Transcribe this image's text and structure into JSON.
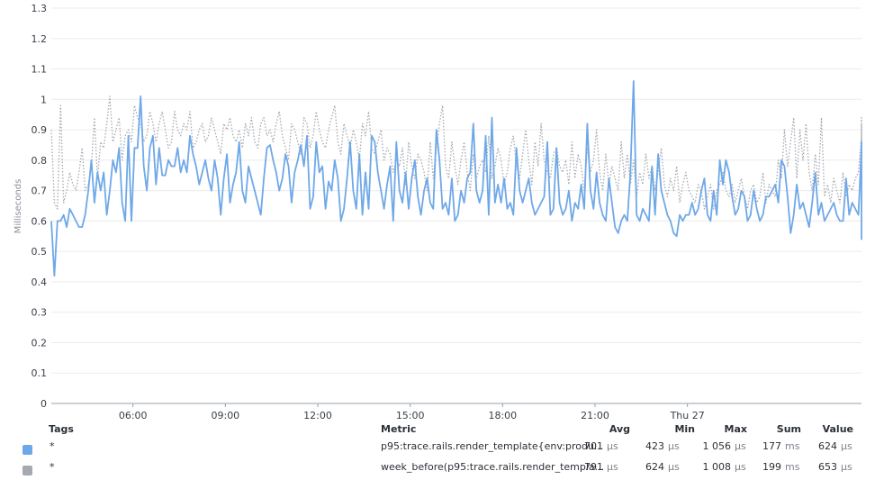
{
  "chart_data": {
    "type": "line",
    "ylabel": "Milliseconds",
    "ylim": [
      0,
      1.3
    ],
    "yticks": [
      "0",
      "0.1",
      "0.2",
      "0.3",
      "0.4",
      "0.5",
      "0.6",
      "0.7",
      "0.8",
      "0.9",
      "1",
      "1.1",
      "1.2",
      "1.3"
    ],
    "xlim": [
      3.35,
      29.65
    ],
    "xticks": [
      {
        "t": 6,
        "label": "06:00"
      },
      {
        "t": 9,
        "label": "09:00"
      },
      {
        "t": 12,
        "label": "12:00"
      },
      {
        "t": 15,
        "label": "15:00"
      },
      {
        "t": 18,
        "label": "18:00"
      },
      {
        "t": 21,
        "label": "21:00"
      },
      {
        "t": 24,
        "label": "Thu 27"
      }
    ],
    "series": [
      {
        "name": "p95:trace.rails.render_template{env:produ...",
        "color": "#6fa8e8",
        "style": "solid",
        "x_start": 3.35,
        "x_step": 0.1,
        "values": [
          0.6,
          0.42,
          0.6,
          0.6,
          0.62,
          0.58,
          0.64,
          0.62,
          0.6,
          0.58,
          0.58,
          0.62,
          0.7,
          0.8,
          0.66,
          0.76,
          0.7,
          0.76,
          0.62,
          0.7,
          0.8,
          0.76,
          0.84,
          0.66,
          0.6,
          0.88,
          0.6,
          0.84,
          0.84,
          1.01,
          0.78,
          0.7,
          0.84,
          0.88,
          0.72,
          0.84,
          0.75,
          0.75,
          0.8,
          0.78,
          0.78,
          0.84,
          0.76,
          0.8,
          0.76,
          0.88,
          0.82,
          0.78,
          0.72,
          0.76,
          0.8,
          0.74,
          0.7,
          0.8,
          0.74,
          0.62,
          0.74,
          0.82,
          0.66,
          0.72,
          0.76,
          0.86,
          0.7,
          0.66,
          0.78,
          0.74,
          0.7,
          0.66,
          0.62,
          0.74,
          0.84,
          0.85,
          0.8,
          0.76,
          0.7,
          0.74,
          0.82,
          0.78,
          0.66,
          0.76,
          0.8,
          0.85,
          0.78,
          0.88,
          0.64,
          0.68,
          0.86,
          0.76,
          0.78,
          0.64,
          0.73,
          0.7,
          0.8,
          0.74,
          0.6,
          0.64,
          0.74,
          0.86,
          0.7,
          0.64,
          0.82,
          0.62,
          0.76,
          0.64,
          0.88,
          0.86,
          0.76,
          0.7,
          0.64,
          0.72,
          0.78,
          0.6,
          0.86,
          0.7,
          0.66,
          0.76,
          0.64,
          0.74,
          0.8,
          0.68,
          0.62,
          0.7,
          0.74,
          0.66,
          0.64,
          0.9,
          0.8,
          0.64,
          0.66,
          0.62,
          0.74,
          0.6,
          0.62,
          0.7,
          0.66,
          0.74,
          0.76,
          0.92,
          0.7,
          0.66,
          0.7,
          0.88,
          0.62,
          0.94,
          0.66,
          0.72,
          0.66,
          0.74,
          0.64,
          0.66,
          0.62,
          0.84,
          0.7,
          0.66,
          0.7,
          0.74,
          0.66,
          0.62,
          0.64,
          0.66,
          0.68,
          0.86,
          0.62,
          0.64,
          0.84,
          0.66,
          0.62,
          0.64,
          0.7,
          0.6,
          0.66,
          0.64,
          0.72,
          0.64,
          0.92,
          0.7,
          0.64,
          0.76,
          0.66,
          0.62,
          0.6,
          0.74,
          0.66,
          0.58,
          0.56,
          0.6,
          0.62,
          0.6,
          0.76,
          1.06,
          0.62,
          0.6,
          0.64,
          0.62,
          0.6,
          0.78,
          0.62,
          0.82,
          0.7,
          0.66,
          0.62,
          0.6,
          0.56,
          0.55,
          0.62,
          0.6,
          0.62,
          0.62,
          0.66,
          0.62,
          0.64,
          0.7,
          0.74,
          0.62,
          0.6,
          0.7,
          0.62,
          0.8,
          0.72,
          0.8,
          0.76,
          0.68,
          0.62,
          0.64,
          0.7,
          0.68,
          0.6,
          0.62,
          0.7,
          0.64,
          0.6,
          0.62,
          0.68,
          0.68,
          0.7,
          0.72,
          0.66,
          0.8,
          0.78,
          0.68,
          0.56,
          0.62,
          0.72,
          0.64,
          0.66,
          0.62,
          0.58,
          0.66,
          0.76,
          0.62,
          0.66,
          0.6,
          0.62,
          0.64,
          0.66,
          0.62,
          0.6,
          0.6,
          0.74,
          0.62,
          0.66,
          0.64,
          0.62,
          0.84,
          0.8,
          0.68,
          0.66,
          0.76,
          0.66,
          0.62,
          0.74,
          0.68,
          0.64,
          0.78,
          0.6,
          0.7,
          0.64,
          0.68,
          0.76,
          0.62,
          0.64,
          0.78,
          0.66,
          0.62,
          0.6,
          0.64,
          0.72,
          0.66,
          0.62,
          0.64,
          0.58,
          0.76,
          0.58,
          0.72,
          0.86,
          0.62,
          0.74,
          0.64,
          0.58,
          0.6,
          0.62,
          0.62,
          0.58,
          0.56,
          0.58,
          0.64,
          0.62,
          0.6,
          0.6,
          0.62,
          0.7,
          0.6,
          0.62,
          0.66,
          0.62,
          0.58,
          0.6,
          0.58,
          0.56,
          0.58,
          0.6,
          0.72,
          0.58,
          0.7,
          0.64,
          0.56,
          0.58,
          0.62,
          0.66,
          0.6,
          0.56,
          0.54,
          0.56,
          0.62,
          0.66,
          0.6,
          0.62,
          0.62,
          0.62,
          0.6,
          0.58,
          0.64,
          0.66,
          0.62,
          0.7,
          0.62,
          0.58,
          0.56,
          0.58,
          0.62,
          0.6,
          0.56,
          0.7,
          0.56,
          0.68,
          0.66,
          0.62,
          0.6,
          0.62,
          0.6,
          0.74,
          0.6,
          0.7,
          0.58,
          0.66,
          0.82,
          0.82,
          0.84,
          0.72,
          0.8,
          0.76,
          0.86,
          0.78,
          0.74,
          0.8,
          0.72,
          0.68,
          0.6,
          0.58,
          0.62,
          0.58,
          0.6,
          0.62,
          0.6,
          0.7,
          0.64,
          0.62,
          0.76,
          0.62,
          0.6,
          0.58,
          0.62,
          0.56,
          0.57,
          0.62,
          0.66,
          0.6,
          0.64,
          0.6,
          0.64,
          0.7,
          0.64,
          0.62,
          0.66,
          0.62,
          0.6,
          0.56
        ]
      },
      {
        "name": "week_before(p95:trace.rails.render_templa...",
        "color": "#a5a9b0",
        "style": "dotted",
        "x_start": 3.35,
        "x_step": 0.1,
        "values": [
          0.9,
          0.66,
          0.64,
          0.98,
          0.66,
          0.7,
          0.76,
          0.72,
          0.7,
          0.76,
          0.84,
          0.7,
          0.72,
          0.78,
          0.94,
          0.74,
          0.86,
          0.84,
          0.92,
          1.01,
          0.86,
          0.9,
          0.94,
          0.8,
          0.88,
          0.9,
          0.86,
          0.98,
          0.94,
          0.92,
          0.86,
          0.88,
          0.96,
          0.92,
          0.86,
          0.92,
          0.96,
          0.9,
          0.84,
          0.86,
          0.96,
          0.9,
          0.88,
          0.92,
          0.9,
          0.96,
          0.84,
          0.86,
          0.9,
          0.92,
          0.86,
          0.88,
          0.94,
          0.9,
          0.86,
          0.82,
          0.92,
          0.9,
          0.94,
          0.88,
          0.86,
          0.9,
          0.84,
          0.92,
          0.88,
          0.94,
          0.86,
          0.84,
          0.92,
          0.94,
          0.88,
          0.9,
          0.86,
          0.92,
          0.96,
          0.88,
          0.84,
          0.8,
          0.92,
          0.9,
          0.86,
          0.82,
          0.94,
          0.92,
          0.84,
          0.88,
          0.96,
          0.9,
          0.86,
          0.84,
          0.9,
          0.94,
          0.98,
          0.86,
          0.82,
          0.92,
          0.88,
          0.84,
          0.9,
          0.86,
          0.8,
          0.92,
          0.88,
          0.96,
          0.84,
          0.82,
          0.86,
          0.9,
          0.8,
          0.84,
          0.82,
          0.76,
          0.8,
          0.78,
          0.84,
          0.72,
          0.86,
          0.78,
          0.74,
          0.82,
          0.8,
          0.76,
          0.7,
          0.86,
          0.74,
          0.84,
          0.92,
          0.98,
          0.78,
          0.74,
          0.86,
          0.78,
          0.72,
          0.8,
          0.86,
          0.76,
          0.7,
          0.82,
          0.74,
          0.78,
          0.8,
          0.76,
          0.88,
          0.74,
          0.78,
          0.84,
          0.8,
          0.72,
          0.76,
          0.84,
          0.88,
          0.78,
          0.74,
          0.82,
          0.9,
          0.8,
          0.72,
          0.86,
          0.78,
          0.92,
          0.8,
          0.76,
          0.74,
          0.82,
          0.84,
          0.78,
          0.76,
          0.8,
          0.72,
          0.86,
          0.74,
          0.82,
          0.78,
          0.7,
          0.84,
          0.76,
          0.8,
          0.9,
          0.76,
          0.7,
          0.82,
          0.72,
          0.78,
          0.74,
          0.7,
          0.86,
          0.74,
          0.82,
          0.72,
          0.8,
          0.68,
          0.76,
          0.72,
          0.82,
          0.74,
          0.78,
          0.7,
          0.76,
          0.84,
          0.72,
          0.68,
          0.74,
          0.7,
          0.78,
          0.66,
          0.72,
          0.76,
          0.7,
          0.68,
          0.66,
          0.72,
          0.7,
          0.64,
          0.68,
          0.72,
          0.64,
          0.7,
          0.72,
          0.76,
          0.7,
          0.68,
          0.72,
          0.66,
          0.7,
          0.74,
          0.68,
          0.64,
          0.7,
          0.72,
          0.66,
          0.68,
          0.76,
          0.66,
          0.72,
          0.7,
          0.68,
          0.8,
          0.74,
          0.9,
          0.78,
          0.86,
          0.94,
          0.74,
          0.9,
          0.8,
          0.92,
          0.76,
          0.7,
          0.82,
          0.72,
          0.94,
          0.68,
          0.72,
          0.66,
          0.74,
          0.7,
          0.66,
          0.76,
          0.68,
          0.72,
          0.7,
          0.74,
          0.76,
          0.88,
          0.74,
          0.7,
          0.82,
          0.72,
          0.68,
          0.7,
          0.76,
          0.66,
          0.72,
          0.78,
          0.7,
          0.72,
          0.74,
          0.68,
          0.7,
          0.72,
          0.66,
          0.7,
          0.74,
          0.72,
          0.68,
          0.7,
          0.76,
          0.84,
          0.8,
          0.72,
          0.7,
          0.76,
          0.7,
          0.66,
          0.72,
          0.68,
          0.74,
          0.7,
          0.66,
          0.74,
          0.78,
          0.72,
          0.68,
          0.74,
          0.7,
          0.66,
          0.72,
          0.68,
          0.7,
          0.74,
          0.68,
          0.7,
          0.72,
          0.76,
          0.8,
          0.76,
          0.72,
          0.7,
          0.74,
          0.78,
          0.8,
          0.84,
          0.9,
          0.78,
          0.72,
          0.7,
          0.74,
          0.68,
          0.66,
          0.7,
          0.72,
          0.66,
          0.64,
          0.7,
          0.68,
          0.66,
          0.7,
          0.72,
          0.68,
          0.66,
          0.68,
          0.7,
          0.66,
          0.68,
          0.7,
          0.66,
          0.64,
          0.68,
          0.7,
          0.72,
          0.68,
          0.66,
          0.7,
          0.72,
          0.66,
          0.7,
          0.74,
          0.72,
          0.78,
          0.72,
          0.74,
          0.76,
          0.7,
          0.9,
          0.76,
          0.72,
          0.88,
          0.84,
          0.8,
          0.76,
          0.86,
          0.82,
          0.94,
          0.8,
          0.76,
          0.92,
          0.84,
          0.78,
          0.82,
          0.74,
          0.72,
          0.78,
          0.7,
          0.74,
          0.76,
          0.7,
          0.72,
          0.76,
          0.74,
          0.72,
          0.7
        ]
      }
    ]
  },
  "legend": {
    "headers": {
      "tags": "Tags",
      "metric": "Metric",
      "avg": "Avg",
      "min": "Min",
      "max": "Max",
      "sum": "Sum",
      "value": "Value"
    },
    "rows": [
      {
        "color": "#6fa8e8",
        "tag": "*",
        "metric": "p95:trace.rails.render_template{env:produ...",
        "avg": "701",
        "avg_unit": "µs",
        "min": "423",
        "min_unit": "µs",
        "max": "1 056",
        "max_unit": "µs",
        "sum": "177",
        "sum_unit": "ms",
        "value": "624",
        "value_unit": "µs"
      },
      {
        "color": "#a5a9b0",
        "tag": "*",
        "metric": "week_before(p95:trace.rails.render_templa...",
        "avg": "791",
        "avg_unit": "µs",
        "min": "624",
        "min_unit": "µs",
        "max": "1 008",
        "max_unit": "µs",
        "sum": "199",
        "sum_unit": "ms",
        "value": "653",
        "value_unit": "µs"
      }
    ]
  }
}
